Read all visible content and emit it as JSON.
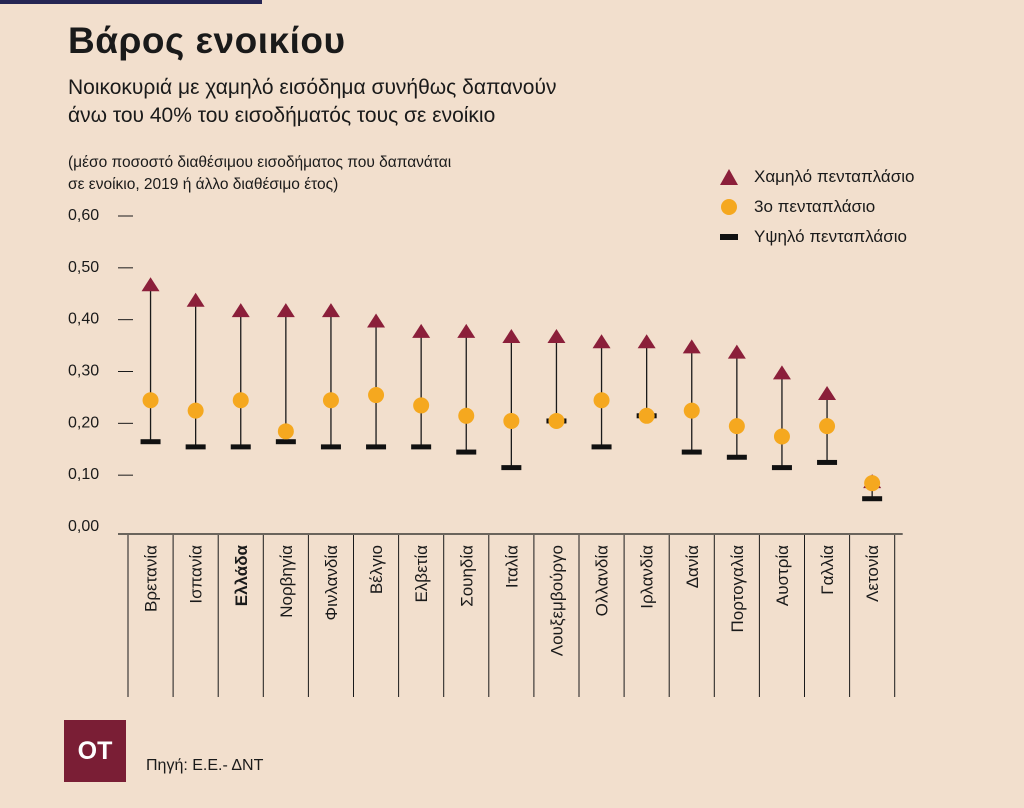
{
  "title": "Βάρος ενοικίου",
  "subtitle_line1": "Νοικοκυριά με χαμηλό εισόδημα συνήθως δαπανούν",
  "subtitle_line2": "άνω του 40% του εισοδήματός τους σε ενοίκιο",
  "note_line1": "(μέσο ποσοστό διαθέσιμου εισοδήματος που δαπανάται",
  "note_line2": "σε ενοίκιο, 2019 ή άλλο διαθέσιμο έτος)",
  "logo_text": "ΟΤ",
  "source": "Πηγή: Ε.Ε.- ΔΝΤ",
  "colors": {
    "background": "#f2dfcd",
    "low_quintile": "#8b1f3a",
    "third_quintile": "#f5a81f",
    "high_quintile": "#111111"
  },
  "chart_data": {
    "type": "scatter",
    "ylim": [
      0,
      0.6
    ],
    "yticks": [
      "0,00",
      "0,10",
      "0,20",
      "0,30",
      "0,40",
      "0,50",
      "0,60"
    ],
    "legend_position": "top-right",
    "categories": [
      "Βρετανία",
      "Ισπανία",
      "Ελλάδα",
      "Νορβηγία",
      "Φινλανδία",
      "Βέλγιο",
      "Ελβετία",
      "Σουηδία",
      "Ιταλία",
      "Λουξεμβούργο",
      "Ολλανδία",
      "Ιρλανδία",
      "Δανία",
      "Πορτογαλία",
      "Αυστρία",
      "Γαλλία",
      "Λετονία"
    ],
    "highlight_category": "Ελλάδα",
    "series": [
      {
        "name": "Χαμηλό πενταπλάσιο",
        "marker": "triangle",
        "values": [
          0.48,
          0.45,
          0.43,
          0.43,
          0.43,
          0.41,
          0.39,
          0.39,
          0.38,
          0.38,
          0.37,
          0.37,
          0.36,
          0.35,
          0.31,
          0.27,
          0.1
        ]
      },
      {
        "name": "3ο πενταπλάσιο",
        "marker": "circle",
        "values": [
          0.26,
          0.24,
          0.26,
          0.2,
          0.26,
          0.27,
          0.25,
          0.23,
          0.22,
          0.22,
          0.26,
          0.23,
          0.24,
          0.21,
          0.19,
          0.21,
          0.1
        ]
      },
      {
        "name": "Υψηλό πενταπλάσιο",
        "marker": "dash",
        "values": [
          0.18,
          0.17,
          0.17,
          0.18,
          0.17,
          0.17,
          0.17,
          0.16,
          0.13,
          0.22,
          0.17,
          0.23,
          0.16,
          0.15,
          0.13,
          0.14,
          0.07
        ]
      }
    ]
  }
}
